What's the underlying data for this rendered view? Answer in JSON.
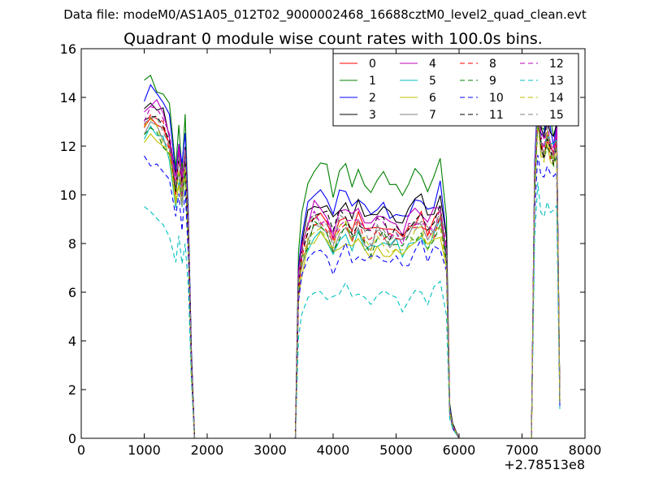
{
  "figure": {
    "suptitle": "Data file: modeM0/AS1A05_012T02_9000002468_16688cztM0_level2_quad_clean.evt"
  },
  "chart_data": {
    "type": "line",
    "title": "Quadrant 0 module wise count rates with 100.0s bins.",
    "xlabel": "",
    "ylabel": "",
    "xlim": [
      0,
      8000
    ],
    "ylim": [
      0,
      16
    ],
    "x_ticks": [
      0,
      1000,
      2000,
      3000,
      4000,
      5000,
      6000,
      7000,
      8000
    ],
    "y_ticks": [
      0,
      2,
      4,
      6,
      8,
      10,
      12,
      14,
      16
    ],
    "x_offset_label": "+2.78513e8",
    "grid": false,
    "legend": {
      "placement": "top-right",
      "columns": 4
    },
    "base": {
      "x": [
        1000,
        1100,
        1200,
        1300,
        1400,
        1500,
        1550,
        1600,
        1650,
        1700,
        1750,
        1800,
        1900,
        2000,
        2500,
        3000,
        3400,
        3450,
        3500,
        3600,
        3700,
        3800,
        3900,
        4000,
        4100,
        4200,
        4300,
        4400,
        4500,
        4600,
        4700,
        4800,
        4900,
        5000,
        5100,
        5200,
        5300,
        5400,
        5500,
        5600,
        5700,
        5800,
        5850,
        5900,
        6000,
        6500,
        7000,
        7150,
        7200,
        7250,
        7300,
        7350,
        7400,
        7450,
        7500,
        7550,
        7600
      ],
      "shape": [
        13.1,
        13.4,
        13.2,
        12.9,
        12.3,
        10.3,
        11.5,
        10.2,
        11.8,
        8.5,
        3.0,
        0.0,
        0.0,
        0.0,
        0.0,
        0.0,
        0.0,
        6.2,
        7.6,
        8.6,
        9.2,
        9.1,
        9.0,
        8.2,
        9.0,
        9.2,
        8.6,
        9.0,
        8.5,
        8.3,
        8.8,
        8.7,
        8.4,
        8.5,
        8.2,
        8.6,
        8.9,
        9.1,
        8.5,
        8.8,
        9.3,
        7.6,
        1.2,
        0.5,
        0.0,
        0.0,
        0.0,
        0.0,
        10.5,
        13.2,
        12.0,
        11.7,
        12.5,
        11.9,
        11.6,
        12.2,
        1.5
      ]
    },
    "series": [
      {
        "name": "0",
        "color": "#ff0000",
        "dash": "solid",
        "scale": [
          1.0,
          1.0,
          1.0
        ]
      },
      {
        "name": "1",
        "color": "#008000",
        "dash": "solid",
        "scale": [
          1.1,
          1.22,
          1.08
        ]
      },
      {
        "name": "2",
        "color": "#0000ff",
        "dash": "solid",
        "scale": [
          1.08,
          1.1,
          1.05
        ]
      },
      {
        "name": "3",
        "color": "#000000",
        "dash": "solid",
        "scale": [
          1.03,
          1.07,
          1.06
        ]
      },
      {
        "name": "4",
        "color": "#bf00bf",
        "dash": "solid",
        "scale": [
          1.03,
          1.04,
          1.03
        ]
      },
      {
        "name": "5",
        "color": "#00bfbf",
        "dash": "solid",
        "scale": [
          0.94,
          0.93,
          1.02
        ]
      },
      {
        "name": "6",
        "color": "#bfbf00",
        "dash": "solid",
        "scale": [
          0.92,
          0.9,
          0.98
        ]
      },
      {
        "name": "7",
        "color": "#808080",
        "dash": "solid",
        "scale": [
          0.97,
          0.96,
          1.0
        ]
      },
      {
        "name": "8",
        "color": "#ff0000",
        "dash": "dashed",
        "scale": [
          0.99,
          0.97,
          0.99
        ]
      },
      {
        "name": "9",
        "color": "#008000",
        "dash": "dashed",
        "scale": [
          0.95,
          0.94,
          0.97
        ]
      },
      {
        "name": "10",
        "color": "#0000ff",
        "dash": "dashed",
        "scale": [
          0.86,
          0.86,
          0.9
        ]
      },
      {
        "name": "11",
        "color": "#000000",
        "dash": "dashed",
        "scale": [
          0.98,
          1.01,
          1.0
        ]
      },
      {
        "name": "12",
        "color": "#bf00bf",
        "dash": "dashed",
        "scale": [
          1.01,
          1.0,
          1.02
        ]
      },
      {
        "name": "13",
        "color": "#00bfbf",
        "dash": "dashed",
        "scale": [
          0.7,
          0.67,
          0.8
        ]
      },
      {
        "name": "14",
        "color": "#bfbf00",
        "dash": "dashed",
        "scale": [
          0.96,
          0.94,
          0.99
        ]
      },
      {
        "name": "15",
        "color": "#808080",
        "dash": "dashed",
        "scale": [
          0.99,
          0.99,
          1.01
        ]
      }
    ]
  }
}
